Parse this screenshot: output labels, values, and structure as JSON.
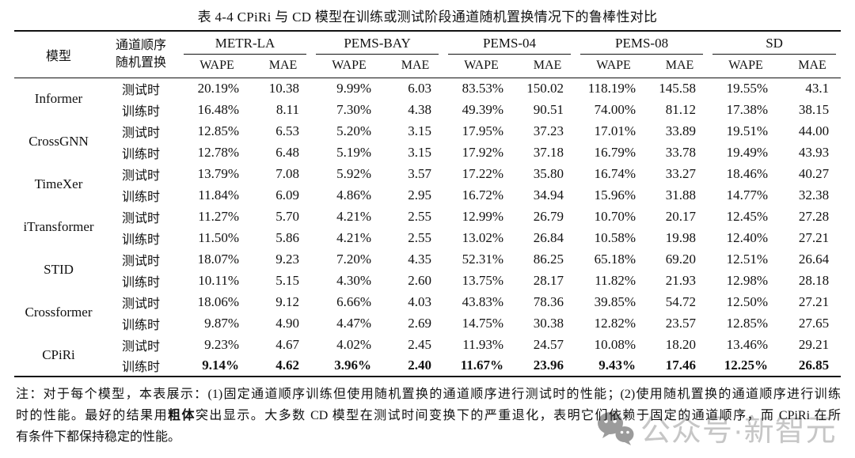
{
  "title": "表 4-4 CPiRi 与 CD 模型在训练或测试阶段通道随机置换情况下的鲁棒性对比",
  "table": {
    "header": {
      "model": "模型",
      "perm_line1": "通道顺序",
      "perm_line2": "随机置换",
      "groups": [
        "METR-LA",
        "PEMS-BAY",
        "PEMS-04",
        "PEMS-08",
        "SD"
      ],
      "metrics": [
        "WAPE",
        "MAE"
      ]
    },
    "rows": [
      {
        "model": "Informer",
        "phase": "测试时",
        "bold": false,
        "values": [
          "20.19%",
          "10.38",
          "9.99%",
          "6.03",
          "83.53%",
          "150.02",
          "118.19%",
          "145.58",
          "19.55%",
          "43.1"
        ]
      },
      {
        "phase": "训练时",
        "bold": false,
        "values": [
          "16.48%",
          "8.11",
          "7.30%",
          "4.38",
          "49.39%",
          "90.51",
          "74.00%",
          "81.12",
          "17.38%",
          "38.15"
        ]
      },
      {
        "model": "CrossGNN",
        "phase": "测试时",
        "bold": false,
        "values": [
          "12.85%",
          "6.53",
          "5.20%",
          "3.15",
          "17.95%",
          "37.23",
          "17.01%",
          "33.89",
          "19.51%",
          "44.00"
        ]
      },
      {
        "phase": "训练时",
        "bold": false,
        "values": [
          "12.78%",
          "6.48",
          "5.19%",
          "3.15",
          "17.92%",
          "37.18",
          "16.79%",
          "33.78",
          "19.49%",
          "43.93"
        ]
      },
      {
        "model": "TimeXer",
        "phase": "测试时",
        "bold": false,
        "values": [
          "13.79%",
          "7.08",
          "5.92%",
          "3.57",
          "17.22%",
          "35.80",
          "16.74%",
          "33.27",
          "18.46%",
          "40.27"
        ]
      },
      {
        "phase": "训练时",
        "bold": false,
        "values": [
          "11.84%",
          "6.09",
          "4.86%",
          "2.95",
          "16.72%",
          "34.94",
          "15.96%",
          "31.88",
          "14.77%",
          "32.38"
        ]
      },
      {
        "model": "iTransformer",
        "phase": "测试时",
        "bold": false,
        "values": [
          "11.27%",
          "5.70",
          "4.21%",
          "2.55",
          "12.99%",
          "26.79",
          "10.70%",
          "20.17",
          "12.45%",
          "27.28"
        ]
      },
      {
        "phase": "训练时",
        "bold": false,
        "values": [
          "11.50%",
          "5.86",
          "4.21%",
          "2.55",
          "13.02%",
          "26.84",
          "10.58%",
          "19.98",
          "12.40%",
          "27.21"
        ]
      },
      {
        "model": "STID",
        "phase": "测试时",
        "bold": false,
        "values": [
          "18.07%",
          "9.23",
          "7.20%",
          "4.35",
          "52.31%",
          "86.25",
          "65.18%",
          "69.20",
          "12.51%",
          "26.64"
        ]
      },
      {
        "phase": "训练时",
        "bold": false,
        "values": [
          "10.11%",
          "5.15",
          "4.30%",
          "2.60",
          "13.75%",
          "28.17",
          "11.82%",
          "21.93",
          "12.98%",
          "28.18"
        ]
      },
      {
        "model": "Crossformer",
        "phase": "测试时",
        "bold": false,
        "values": [
          "18.06%",
          "9.12",
          "6.66%",
          "4.03",
          "43.83%",
          "78.36",
          "39.85%",
          "54.72",
          "12.50%",
          "27.21"
        ]
      },
      {
        "phase": "训练时",
        "bold": false,
        "values": [
          "9.87%",
          "4.90",
          "4.47%",
          "2.69",
          "14.75%",
          "30.38",
          "12.82%",
          "23.57",
          "12.85%",
          "27.65"
        ]
      },
      {
        "model": "CPiRi",
        "phase": "测试时",
        "bold": false,
        "values": [
          "9.23%",
          "4.67",
          "4.02%",
          "2.45",
          "11.93%",
          "24.57",
          "10.08%",
          "18.20",
          "13.46%",
          "29.21"
        ]
      },
      {
        "phase": "训练时",
        "bold": true,
        "values": [
          "9.14%",
          "4.62",
          "3.96%",
          "2.40",
          "11.67%",
          "23.96",
          "9.43%",
          "17.46",
          "12.25%",
          "26.85"
        ]
      }
    ]
  },
  "note": {
    "line1": "注：对于每个模型，本表展示：(1)固定通道顺序训练但使用随机置换的通道顺序进行测试时的性能；(2)使用随机置换的通道顺序进行训练",
    "line2_pre": "时的性能。最好的结果用",
    "line2_bold": "粗体",
    "line2_post": "突出显示。大多数 CD 模型在测试时间变换下的严重退化，表明它们依赖于固定的通道顺序，而 CPiRi 在所",
    "line3": "有条件下都保持稳定的性能。"
  },
  "watermark": {
    "icon": "wechat-icon",
    "text": "公众号·新智元",
    "text_color": "#c6c6c6",
    "icon_color": "#9b9b9b"
  }
}
